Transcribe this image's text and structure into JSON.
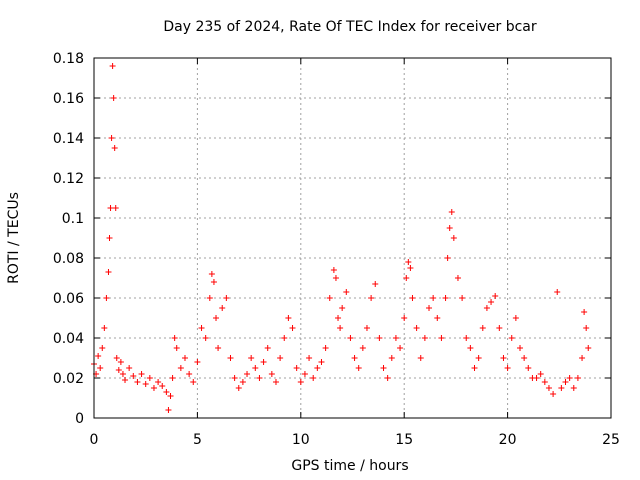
{
  "chart_data": {
    "type": "scatter",
    "title": "Day 235 of 2024, Rate Of TEC Index for receiver bcar",
    "xlabel": "GPS time / hours",
    "ylabel": "ROTI / TECUs",
    "xlim": [
      0,
      25
    ],
    "ylim": [
      0,
      0.18
    ],
    "x_ticks": [
      0,
      5,
      10,
      15,
      20,
      25
    ],
    "y_ticks": [
      0,
      0.02,
      0.04,
      0.06,
      0.08,
      0.1,
      0.12,
      0.14,
      0.16,
      0.18
    ],
    "x_tick_labels": [
      "0",
      "5",
      "10",
      "15",
      "20",
      "25"
    ],
    "y_tick_labels": [
      "0",
      "0.02",
      "0.04",
      "0.06",
      "0.08",
      "0.1",
      "0.12",
      "0.14",
      "0.16",
      "0.18"
    ],
    "grid": true,
    "marker": "+",
    "color": "#ff0000",
    "series": [
      {
        "x": [
          0.0,
          0.1,
          0.2,
          0.3,
          0.4,
          0.5,
          0.6,
          0.7,
          0.75,
          0.8,
          0.85,
          0.9,
          0.95,
          1.0,
          1.05,
          1.1,
          1.2,
          1.3,
          1.4,
          1.5,
          1.7,
          1.9,
          2.1,
          2.3,
          2.5,
          2.7,
          2.9,
          3.1,
          3.3,
          3.5,
          3.6,
          3.7,
          3.8,
          3.9,
          4.0,
          4.2,
          4.4,
          4.6,
          4.8,
          5.0,
          5.2,
          5.4,
          5.6,
          5.7,
          5.8,
          5.9,
          6.0,
          6.2,
          6.4,
          6.6,
          6.8,
          7.0,
          7.2,
          7.4,
          7.6,
          7.8,
          8.0,
          8.2,
          8.4,
          8.6,
          8.8,
          9.0,
          9.2,
          9.4,
          9.6,
          9.8,
          10.0,
          10.2,
          10.4,
          10.6,
          10.8,
          11.0,
          11.2,
          11.4,
          11.6,
          11.7,
          11.8,
          11.9,
          12.0,
          12.2,
          12.4,
          12.6,
          12.8,
          13.0,
          13.2,
          13.4,
          13.6,
          13.8,
          14.0,
          14.2,
          14.4,
          14.6,
          14.8,
          15.0,
          15.1,
          15.2,
          15.3,
          15.4,
          15.6,
          15.8,
          16.0,
          16.2,
          16.4,
          16.6,
          16.8,
          17.0,
          17.1,
          17.2,
          17.3,
          17.4,
          17.6,
          17.8,
          18.0,
          18.2,
          18.4,
          18.6,
          18.8,
          19.0,
          19.2,
          19.4,
          19.6,
          19.8,
          20.0,
          20.2,
          20.4,
          20.6,
          20.8,
          21.0,
          21.2,
          21.4,
          21.6,
          21.8,
          22.0,
          22.2,
          22.4,
          22.6,
          22.8,
          23.0,
          23.2,
          23.4,
          23.6,
          23.7,
          23.8,
          23.9
        ],
        "y": [
          0.027,
          0.022,
          0.031,
          0.025,
          0.035,
          0.045,
          0.06,
          0.073,
          0.09,
          0.105,
          0.14,
          0.176,
          0.16,
          0.135,
          0.105,
          0.03,
          0.024,
          0.028,
          0.022,
          0.019,
          0.025,
          0.021,
          0.018,
          0.022,
          0.017,
          0.02,
          0.015,
          0.018,
          0.016,
          0.013,
          0.004,
          0.011,
          0.02,
          0.04,
          0.035,
          0.025,
          0.03,
          0.022,
          0.018,
          0.028,
          0.045,
          0.04,
          0.06,
          0.072,
          0.068,
          0.05,
          0.035,
          0.055,
          0.06,
          0.03,
          0.02,
          0.015,
          0.018,
          0.022,
          0.03,
          0.025,
          0.02,
          0.028,
          0.035,
          0.022,
          0.018,
          0.03,
          0.04,
          0.05,
          0.045,
          0.025,
          0.018,
          0.022,
          0.03,
          0.02,
          0.025,
          0.028,
          0.035,
          0.06,
          0.074,
          0.07,
          0.05,
          0.045,
          0.055,
          0.063,
          0.04,
          0.03,
          0.025,
          0.035,
          0.045,
          0.06,
          0.067,
          0.04,
          0.025,
          0.02,
          0.03,
          0.04,
          0.035,
          0.05,
          0.07,
          0.078,
          0.075,
          0.06,
          0.045,
          0.03,
          0.04,
          0.055,
          0.06,
          0.05,
          0.04,
          0.06,
          0.08,
          0.095,
          0.103,
          0.09,
          0.07,
          0.06,
          0.04,
          0.035,
          0.025,
          0.03,
          0.045,
          0.055,
          0.058,
          0.061,
          0.045,
          0.03,
          0.025,
          0.04,
          0.05,
          0.035,
          0.03,
          0.025,
          0.02,
          0.02,
          0.022,
          0.018,
          0.015,
          0.012,
          0.063,
          0.015,
          0.018,
          0.02,
          0.015,
          0.02,
          0.03,
          0.053,
          0.045,
          0.035
        ]
      }
    ]
  }
}
